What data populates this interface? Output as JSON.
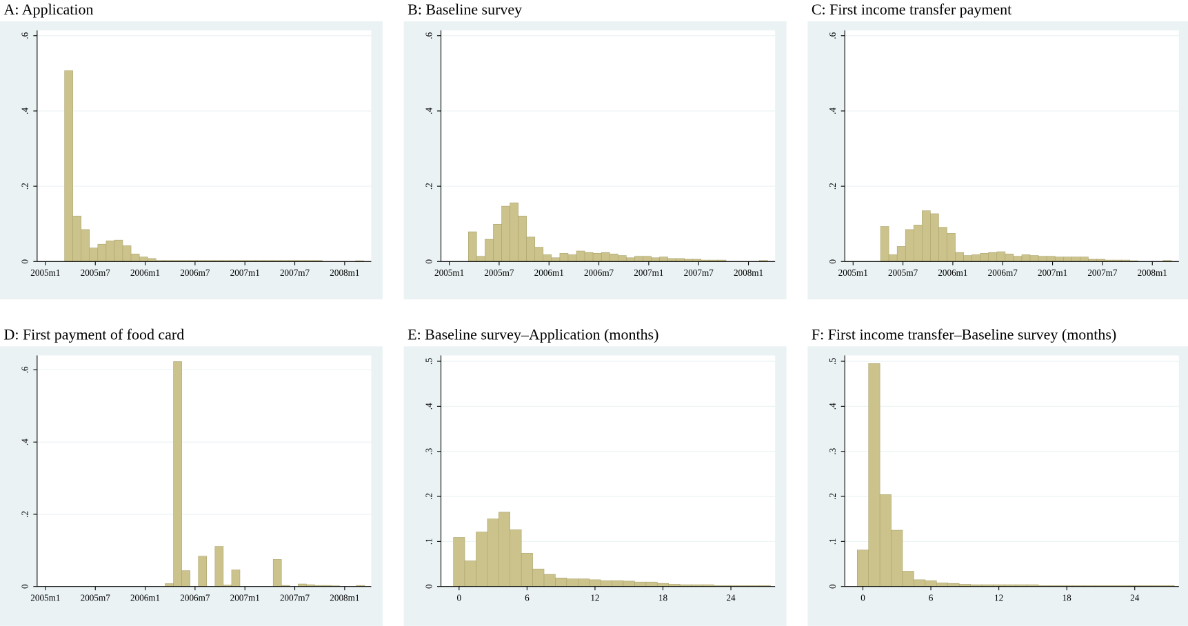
{
  "chart_data": [
    {
      "type": "histogram",
      "title": "A: Application",
      "color": "#cbc38b",
      "grid": true,
      "bins": [
        542.3,
        543.3,
        544.3,
        545.3,
        546.3,
        547.3,
        548.3,
        549.3,
        550.3,
        551.3,
        552.3,
        553.3,
        554.3,
        555.3,
        556.3,
        557.3,
        558.3,
        559.3,
        560.3,
        561.3,
        562.3,
        563.3,
        564.3,
        565.3,
        566.3,
        567.3,
        568.3,
        569.3,
        570.3,
        571.3,
        572.3,
        573.3,
        574.3,
        575.3,
        576.3,
        577.3,
        578.3
      ],
      "values": [
        0.507,
        0.121,
        0.085,
        0.036,
        0.046,
        0.055,
        0.057,
        0.042,
        0.02,
        0.012,
        0.008,
        0.003,
        0.003,
        0.003,
        0.003,
        0.003,
        0.003,
        0.003,
        0.003,
        0.003,
        0.003,
        0.003,
        0.003,
        0.003,
        0.003,
        0.003,
        0.003,
        0.003,
        0.003,
        0.003,
        0.003,
        0,
        0,
        0,
        0,
        0.002
      ],
      "xlim": [
        539,
        579.2
      ],
      "xticks": [
        {
          "value": 540,
          "label": "2005m1"
        },
        {
          "value": 546,
          "label": "2005m7"
        },
        {
          "value": 552,
          "label": "2006m1"
        },
        {
          "value": 558,
          "label": "2006m7"
        },
        {
          "value": 564,
          "label": "2007m1"
        },
        {
          "value": 570,
          "label": "2007m7"
        },
        {
          "value": 576,
          "label": "2008m1"
        }
      ],
      "ylim": [
        0,
        0.614
      ],
      "yticks": [
        0,
        {
          "value": 0.2,
          "label": ".2"
        },
        {
          "value": 0.4,
          "label": ".4"
        },
        {
          "value": 0.6,
          "label": ".6"
        }
      ]
    },
    {
      "type": "histogram",
      "title": "B: Baseline survey",
      "color": "#cbc38b",
      "grid": true,
      "bins": [
        542.3,
        543.3,
        544.3,
        545.3,
        546.3,
        547.3,
        548.3,
        549.3,
        550.3,
        551.3,
        552.3,
        553.3,
        554.3,
        555.3,
        556.3,
        557.3,
        558.3,
        559.3,
        560.3,
        561.3,
        562.3,
        563.3,
        564.3,
        565.3,
        566.3,
        567.3,
        568.3,
        569.3,
        570.3,
        571.3,
        572.3,
        573.3,
        574.3,
        575.3,
        576.3,
        577.3,
        578.3
      ],
      "values": [
        0.079,
        0.014,
        0.059,
        0.099,
        0.147,
        0.156,
        0.121,
        0.065,
        0.038,
        0.018,
        0.01,
        0.022,
        0.018,
        0.028,
        0.024,
        0.022,
        0.024,
        0.02,
        0.016,
        0.01,
        0.014,
        0.014,
        0.01,
        0.012,
        0.008,
        0.008,
        0.006,
        0.006,
        0.004,
        0.004,
        0.004,
        0,
        0,
        0,
        0,
        0.003
      ],
      "xlim": [
        539,
        579.2
      ],
      "xticks": [
        {
          "value": 540,
          "label": "2005m1"
        },
        {
          "value": 546,
          "label": "2005m7"
        },
        {
          "value": 552,
          "label": "2006m1"
        },
        {
          "value": 558,
          "label": "2006m7"
        },
        {
          "value": 564,
          "label": "2007m1"
        },
        {
          "value": 570,
          "label": "2007m7"
        },
        {
          "value": 576,
          "label": "2008m1"
        }
      ],
      "ylim": [
        0,
        0.614
      ],
      "yticks": [
        0,
        {
          "value": 0.2,
          "label": ".2"
        },
        {
          "value": 0.4,
          "label": ".4"
        },
        {
          "value": 0.6,
          "label": ".6"
        }
      ]
    },
    {
      "type": "histogram",
      "title": "C: First income transfer payment",
      "color": "#cbc38b",
      "grid": true,
      "bins": [
        543.3,
        544.3,
        545.3,
        546.3,
        547.3,
        548.3,
        549.3,
        550.3,
        551.3,
        552.3,
        553.3,
        554.3,
        555.3,
        556.3,
        557.3,
        558.3,
        559.3,
        560.3,
        561.3,
        562.3,
        563.3,
        564.3,
        565.3,
        566.3,
        567.3,
        568.3,
        569.3,
        570.3,
        571.3,
        572.3,
        573.3,
        574.3,
        575.3,
        576.3,
        577.3,
        578.3
      ],
      "values": [
        0.093,
        0.018,
        0.04,
        0.085,
        0.097,
        0.135,
        0.127,
        0.091,
        0.075,
        0.024,
        0.016,
        0.018,
        0.022,
        0.024,
        0.026,
        0.02,
        0.014,
        0.018,
        0.016,
        0.014,
        0.014,
        0.012,
        0.012,
        0.012,
        0.012,
        0.006,
        0.006,
        0.004,
        0.004,
        0.004,
        0.002,
        0,
        0,
        0,
        0.003
      ],
      "xlim": [
        539,
        579.2
      ],
      "xticks": [
        {
          "value": 540,
          "label": "2005m1"
        },
        {
          "value": 546,
          "label": "2005m7"
        },
        {
          "value": 552,
          "label": "2006m1"
        },
        {
          "value": 558,
          "label": "2006m7"
        },
        {
          "value": 564,
          "label": "2007m1"
        },
        {
          "value": 570,
          "label": "2007m7"
        },
        {
          "value": 576,
          "label": "2008m1"
        }
      ],
      "ylim": [
        0,
        0.614
      ],
      "yticks": [
        0,
        {
          "value": 0.2,
          "label": ".2"
        },
        {
          "value": 0.4,
          "label": ".4"
        },
        {
          "value": 0.6,
          "label": ".6"
        }
      ]
    },
    {
      "type": "histogram",
      "title": "D: First payment of food card",
      "color": "#cbc38b",
      "grid": true,
      "bins": [
        554.4,
        555.4,
        556.4,
        557.4,
        558.4,
        559.4,
        560.4,
        561.4,
        562.4,
        563.4,
        564.4,
        565.4,
        566.4,
        567.4,
        568.4,
        569.4,
        570.4,
        571.4,
        572.4,
        573.4,
        574.4,
        575.4,
        576.4,
        577.4,
        578.4
      ],
      "values": [
        0.008,
        0.623,
        0.044,
        0,
        0.084,
        0,
        0.111,
        0.004,
        0.046,
        0,
        0,
        0,
        0,
        0.075,
        0.003,
        0,
        0.007,
        0.005,
        0.003,
        0.003,
        0.002,
        0,
        0,
        0.003
      ],
      "xlim": [
        539,
        579.2
      ],
      "xticks": [
        {
          "value": 540,
          "label": "2005m1"
        },
        {
          "value": 546,
          "label": "2005m7"
        },
        {
          "value": 552,
          "label": "2006m1"
        },
        {
          "value": 558,
          "label": "2006m7"
        },
        {
          "value": 564,
          "label": "2007m1"
        },
        {
          "value": 570,
          "label": "2007m7"
        },
        {
          "value": 576,
          "label": "2008m1"
        }
      ],
      "ylim": [
        0,
        0.64
      ],
      "yticks": [
        0,
        {
          "value": 0.2,
          "label": ".2"
        },
        {
          "value": 0.4,
          "label": ".4"
        },
        {
          "value": 0.6,
          "label": ".6"
        }
      ]
    },
    {
      "type": "histogram",
      "title": "E: Baseline survey–Application (months)",
      "color": "#cbc38b",
      "grid": true,
      "bins": [
        -0.5,
        0.5,
        1.5,
        2.5,
        3.5,
        4.5,
        5.5,
        6.5,
        7.5,
        8.5,
        9.5,
        10.5,
        11.5,
        12.5,
        13.5,
        14.5,
        15.5,
        16.5,
        17.5,
        18.5,
        19.5,
        20.5,
        21.5,
        22.5,
        23.5,
        24.5,
        25.5,
        26.5,
        27.5
      ],
      "values": [
        0.109,
        0.057,
        0.121,
        0.15,
        0.165,
        0.126,
        0.074,
        0.039,
        0.027,
        0.019,
        0.017,
        0.017,
        0.015,
        0.013,
        0.013,
        0.012,
        0.01,
        0.01,
        0.007,
        0.005,
        0.004,
        0.004,
        0.004,
        0.002,
        0.002,
        0.002,
        0.002,
        0.002
      ],
      "xlim": [
        -1.6,
        27.9
      ],
      "xticks": [
        0,
        6,
        12,
        18,
        24
      ],
      "ylim": [
        0,
        0.513
      ],
      "yticks": [
        0,
        {
          "value": 0.1,
          "label": ".1"
        },
        {
          "value": 0.2,
          "label": ".2"
        },
        {
          "value": 0.3,
          "label": ".3"
        },
        {
          "value": 0.4,
          "label": ".4"
        },
        {
          "value": 0.5,
          "label": ".5"
        }
      ]
    },
    {
      "type": "histogram",
      "title": "F: First income transfer–Baseline survey (months)",
      "color": "#cbc38b",
      "grid": true,
      "bins": [
        -0.5,
        0.5,
        1.5,
        2.5,
        3.5,
        4.5,
        5.5,
        6.5,
        7.5,
        8.5,
        9.5,
        10.5,
        11.5,
        12.5,
        13.5,
        14.5,
        15.5,
        16.5,
        17.5,
        18.5,
        19.5,
        20.5,
        21.5,
        22.5,
        23.5,
        24.5,
        25.5,
        26.5,
        27.5
      ],
      "values": [
        0.081,
        0.495,
        0.204,
        0.125,
        0.034,
        0.015,
        0.013,
        0.008,
        0.007,
        0.005,
        0.004,
        0.004,
        0.004,
        0.004,
        0.004,
        0.004,
        0.002,
        0.002,
        0.002,
        0.002,
        0.002,
        0.002,
        0.002,
        0.002,
        0.002,
        0.002,
        0.002,
        0.002
      ],
      "xlim": [
        -1.6,
        27.9
      ],
      "xticks": [
        0,
        6,
        12,
        18,
        24
      ],
      "ylim": [
        0,
        0.513
      ],
      "yticks": [
        0,
        {
          "value": 0.1,
          "label": ".1"
        },
        {
          "value": 0.2,
          "label": ".2"
        },
        {
          "value": 0.3,
          "label": ".3"
        },
        {
          "value": 0.4,
          "label": ".4"
        },
        {
          "value": 0.5,
          "label": ".5"
        }
      ]
    }
  ]
}
